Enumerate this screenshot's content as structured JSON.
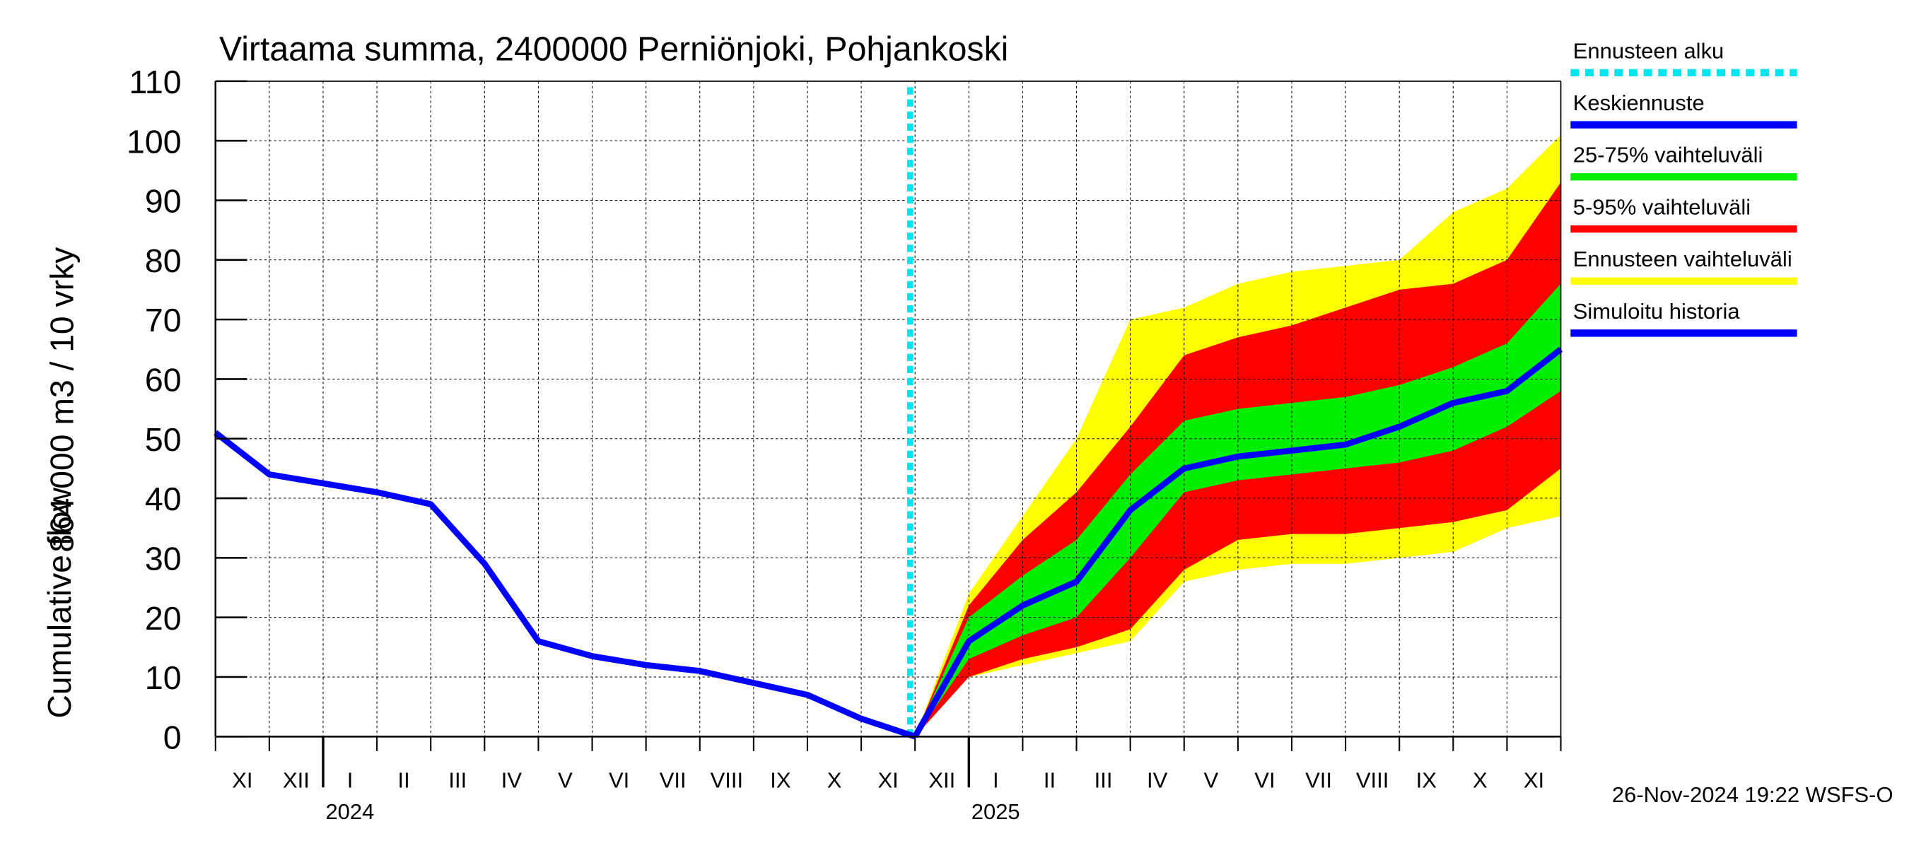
{
  "chart_data": {
    "type": "line",
    "title": "Virtaama summa, 2400000 Perniönjoki, Pohjankoski",
    "ylabel": [
      "864 000 m3 / 10 vrky",
      "Cumulative flow"
    ],
    "footer": "26-Nov-2024 19:22 WSFS-O",
    "xlim": [
      "2023-11",
      "2025-12"
    ],
    "x": [
      "2023-11",
      "2023-12",
      "2024-01",
      "2024-02",
      "2024-03",
      "2024-04",
      "2024-05",
      "2024-06",
      "2024-07",
      "2024-08",
      "2024-09",
      "2024-10",
      "2024-11",
      "2024-12",
      "2025-01",
      "2025-02",
      "2025-03",
      "2025-04",
      "2025-05",
      "2025-06",
      "2025-07",
      "2025-08",
      "2025-09",
      "2025-10",
      "2025-11",
      "2025-12"
    ],
    "month_labels": [
      "XI",
      "XII",
      "I",
      "II",
      "III",
      "IV",
      "V",
      "VI",
      "VII",
      "VIII",
      "IX",
      "X",
      "XI",
      "XII",
      "I",
      "II",
      "III",
      "IV",
      "V",
      "VI",
      "VII",
      "VIII",
      "IX",
      "X",
      "XI"
    ],
    "year_labels": [
      {
        "x": "2024-01",
        "label": "2024"
      },
      {
        "x": "2025-01",
        "label": "2025"
      }
    ],
    "ylim": [
      0,
      110
    ],
    "yticks": [
      0,
      10,
      20,
      30,
      40,
      50,
      60,
      70,
      80,
      90,
      100,
      110
    ],
    "grid": true,
    "forecast_start": {
      "x": "2024-12",
      "name": "Ennusteen alku",
      "color": "#00e5ee"
    },
    "bands": [
      {
        "name": "Ennusteen vaihteluväli",
        "color": "#ffff00",
        "low": [
          null,
          null,
          null,
          null,
          null,
          null,
          null,
          null,
          null,
          null,
          null,
          null,
          null,
          0,
          10,
          12,
          14,
          16,
          26,
          28,
          29,
          29,
          30,
          31,
          35,
          37
        ],
        "high": [
          null,
          null,
          null,
          null,
          null,
          null,
          null,
          null,
          null,
          null,
          null,
          null,
          null,
          0,
          24,
          37,
          50,
          70,
          72,
          76,
          78,
          79,
          80,
          88,
          92,
          101
        ]
      },
      {
        "name": "5-95% vaihteluväli",
        "color": "#ff0000",
        "low": [
          null,
          null,
          null,
          null,
          null,
          null,
          null,
          null,
          null,
          null,
          null,
          null,
          null,
          0,
          10,
          13,
          15,
          18,
          28,
          33,
          34,
          34,
          35,
          36,
          38,
          45
        ],
        "high": [
          null,
          null,
          null,
          null,
          null,
          null,
          null,
          null,
          null,
          null,
          null,
          null,
          null,
          0,
          22,
          33,
          41,
          52,
          64,
          67,
          69,
          72,
          75,
          76,
          80,
          93
        ]
      },
      {
        "name": "25-75% vaihteluväli",
        "color": "#00ee00",
        "low": [
          null,
          null,
          null,
          null,
          null,
          null,
          null,
          null,
          null,
          null,
          null,
          null,
          null,
          0,
          13,
          17,
          20,
          30,
          41,
          43,
          44,
          45,
          46,
          48,
          52,
          58
        ],
        "high": [
          null,
          null,
          null,
          null,
          null,
          null,
          null,
          null,
          null,
          null,
          null,
          null,
          null,
          0,
          20,
          27,
          33,
          44,
          53,
          55,
          56,
          57,
          59,
          62,
          66,
          76
        ]
      }
    ],
    "series": [
      {
        "name": "Keskiennuste",
        "color": "#0000ff",
        "values": [
          null,
          null,
          null,
          null,
          null,
          null,
          null,
          null,
          null,
          null,
          null,
          null,
          null,
          0,
          16,
          22,
          26,
          38,
          45,
          47,
          48,
          49,
          52,
          56,
          58,
          65
        ]
      },
      {
        "name": "Simuloitu historia",
        "color": "#0000ff",
        "values": [
          51,
          44,
          42.5,
          41,
          39,
          29,
          16,
          13.5,
          12,
          11,
          9,
          7,
          3,
          0,
          null,
          null,
          null,
          null,
          null,
          null,
          null,
          null,
          null,
          null,
          null,
          null
        ]
      }
    ]
  }
}
